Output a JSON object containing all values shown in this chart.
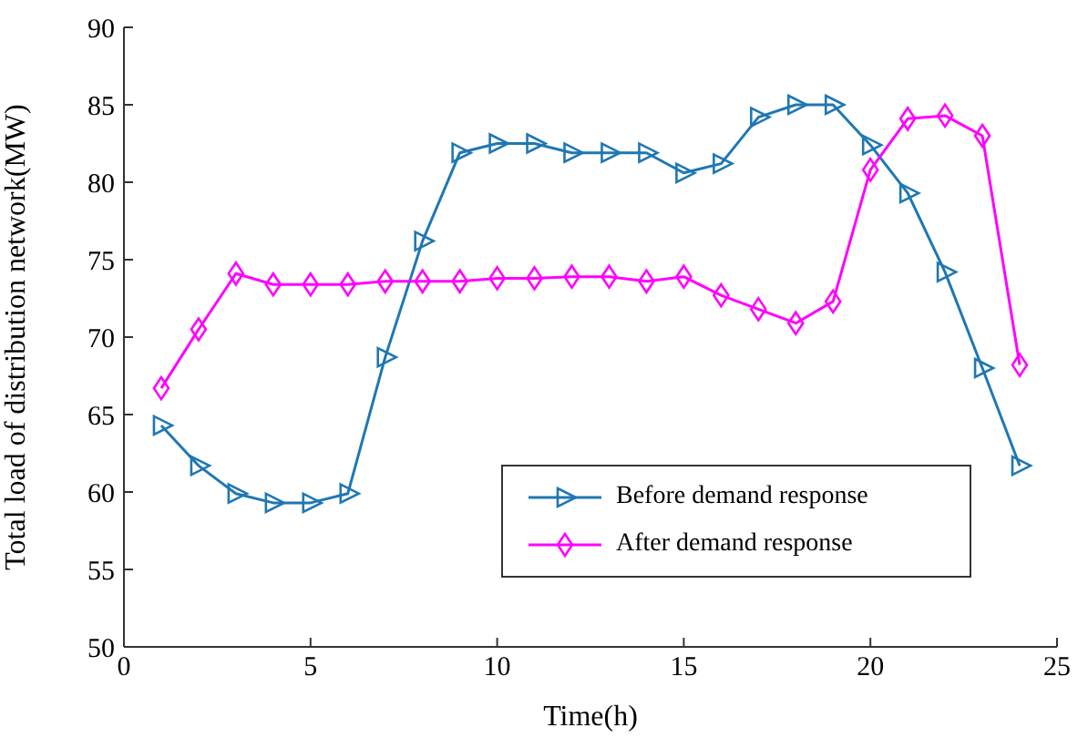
{
  "chart_data": {
    "type": "line",
    "xlabel": "Time(h)",
    "ylabel": "Total load of distribution network(MW)",
    "x": [
      1,
      2,
      3,
      4,
      5,
      6,
      7,
      8,
      9,
      10,
      11,
      12,
      13,
      14,
      15,
      16,
      17,
      18,
      19,
      20,
      21,
      22,
      23,
      24
    ],
    "series": [
      {
        "name": "Before demand response",
        "color": "#1f77b4",
        "marker": "triangle",
        "values": [
          64.3,
          61.7,
          59.9,
          59.3,
          59.3,
          59.9,
          68.7,
          76.2,
          81.9,
          82.5,
          82.5,
          81.9,
          81.9,
          81.9,
          80.6,
          81.2,
          84.2,
          85,
          85,
          82.4,
          79.3,
          74.2,
          68,
          61.7
        ]
      },
      {
        "name": "After demand response",
        "color": "#ff00ff",
        "marker": "diamond",
        "values": [
          66.7,
          70.5,
          74.1,
          73.4,
          73.4,
          73.4,
          73.6,
          73.6,
          73.6,
          73.8,
          73.8,
          73.9,
          73.9,
          73.6,
          73.9,
          72.7,
          71.8,
          70.9,
          72.3,
          80.8,
          84.1,
          84.3,
          83,
          68.2
        ]
      }
    ],
    "xlim": [
      0,
      25
    ],
    "xticks": [
      0,
      5,
      10,
      15,
      20,
      25
    ],
    "ylim": [
      50,
      90
    ],
    "yticks": [
      50,
      55,
      60,
      65,
      70,
      75,
      80,
      85,
      90
    ],
    "grid": false,
    "legend": "bottom right",
    "line_style": "solid"
  }
}
